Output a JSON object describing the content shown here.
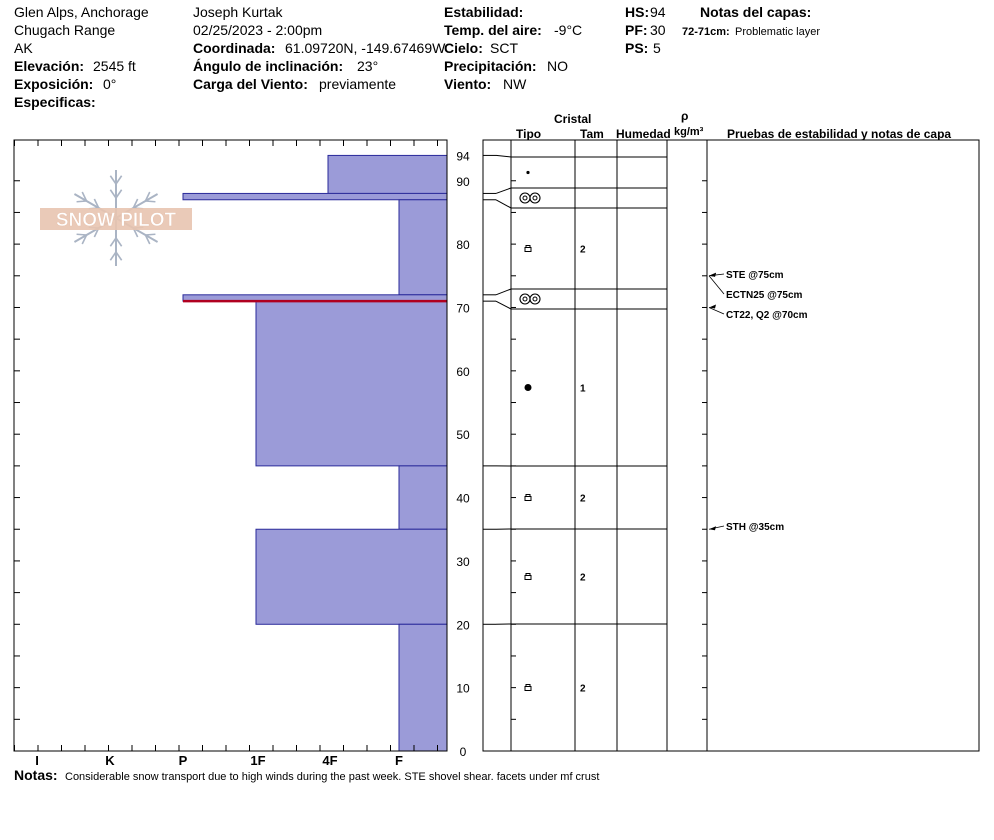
{
  "header": {
    "location": "Glen Alps, Anchorage",
    "range": "Chugach Range",
    "state": "AK",
    "elevation_label": "Elevación:",
    "elevation_value": "2545 ft",
    "aspect_label": "Exposición:",
    "aspect_value": "0°",
    "specifics_label": "Especificas:",
    "observer": "Joseph Kurtak",
    "datetime": "02/25/2023 - 2:00pm",
    "coords_label": "Coordinada:",
    "coords_value": "61.09720N, -149.67469W",
    "slope_label": "Ángulo de inclinación:",
    "slope_value": "23°",
    "wind_loading_label": "Carga del Viento:",
    "wind_loading_value": "previamente",
    "stability_label": "Estabilidad:",
    "air_temp_label": "Temp. del aire:",
    "air_temp_value": "-9°C",
    "sky_label": "Cielo:",
    "sky_value": "SCT",
    "precip_label": "Precipitación:",
    "precip_value": "NO",
    "wind_label": "Viento:",
    "wind_value": "NW",
    "hs_label": "HS:",
    "hs_value": "94",
    "pf_label": "PF:",
    "pf_value": "30",
    "ps_label": "PS:",
    "ps_value": "5",
    "layer_notes_label": "Notas del capas:",
    "layer_note_range": "72-71cm:",
    "layer_note_text": "Problematic layer"
  },
  "logo": {
    "text": "SNOW PILOT"
  },
  "columns": {
    "cristal": "Cristal",
    "tipo": "Tipo",
    "tam": "Tam",
    "humedad": "Humedad",
    "rho": "ρ",
    "density_unit": "kg/m³",
    "tests": "Pruebas de estabilidad y notas de capa"
  },
  "notes": {
    "label": "Notas:",
    "text": "Considerable snow transport due to high winds during the past week. STE shovel shear. facets under mf crust"
  },
  "colors": {
    "hardness_fill": "#9b9bd8",
    "hardness_stroke": "#2a2a9a",
    "problem_layer": "#b00020",
    "logo": "#e8c4b0",
    "flake": "#aab4c4"
  },
  "chart_data": {
    "type": "snow_profile",
    "hardness_scale": [
      "I",
      "K",
      "P",
      "1F",
      "4F",
      "F"
    ],
    "depth_range": [
      0,
      94
    ],
    "depth_ticks": [
      0,
      10,
      20,
      30,
      40,
      50,
      60,
      70,
      80,
      90,
      94
    ],
    "layers": [
      {
        "top": 94,
        "bottom": 88,
        "hardness": "4F",
        "crystal": "precip-particle",
        "size": ""
      },
      {
        "top": 88,
        "bottom": 87,
        "hardness": "P",
        "crystal": "melt-freeze-crust",
        "size": ""
      },
      {
        "top": 87,
        "bottom": 72,
        "hardness": "F",
        "crystal": "faceted",
        "size": "2"
      },
      {
        "top": 72,
        "bottom": 71,
        "hardness": "P",
        "crystal": "melt-freeze-crust",
        "size": ""
      },
      {
        "top": 71,
        "bottom": 45,
        "hardness": "1F",
        "crystal": "rounded-grains",
        "size": "1"
      },
      {
        "top": 45,
        "bottom": 35,
        "hardness": "F",
        "crystal": "faceted",
        "size": "2"
      },
      {
        "top": 35,
        "bottom": 20,
        "hardness": "1F",
        "crystal": "faceted",
        "size": "2"
      },
      {
        "top": 20,
        "bottom": 0,
        "hardness": "F",
        "crystal": "faceted",
        "size": "2"
      }
    ],
    "problem_layer_depth": 71,
    "tests": [
      {
        "depth": 75,
        "label": "STE @75cm"
      },
      {
        "depth": 75,
        "label": "ECTN25 @75cm"
      },
      {
        "depth": 70,
        "label": "CT22, Q2 @70cm"
      },
      {
        "depth": 35,
        "label": "STH @35cm"
      }
    ]
  }
}
